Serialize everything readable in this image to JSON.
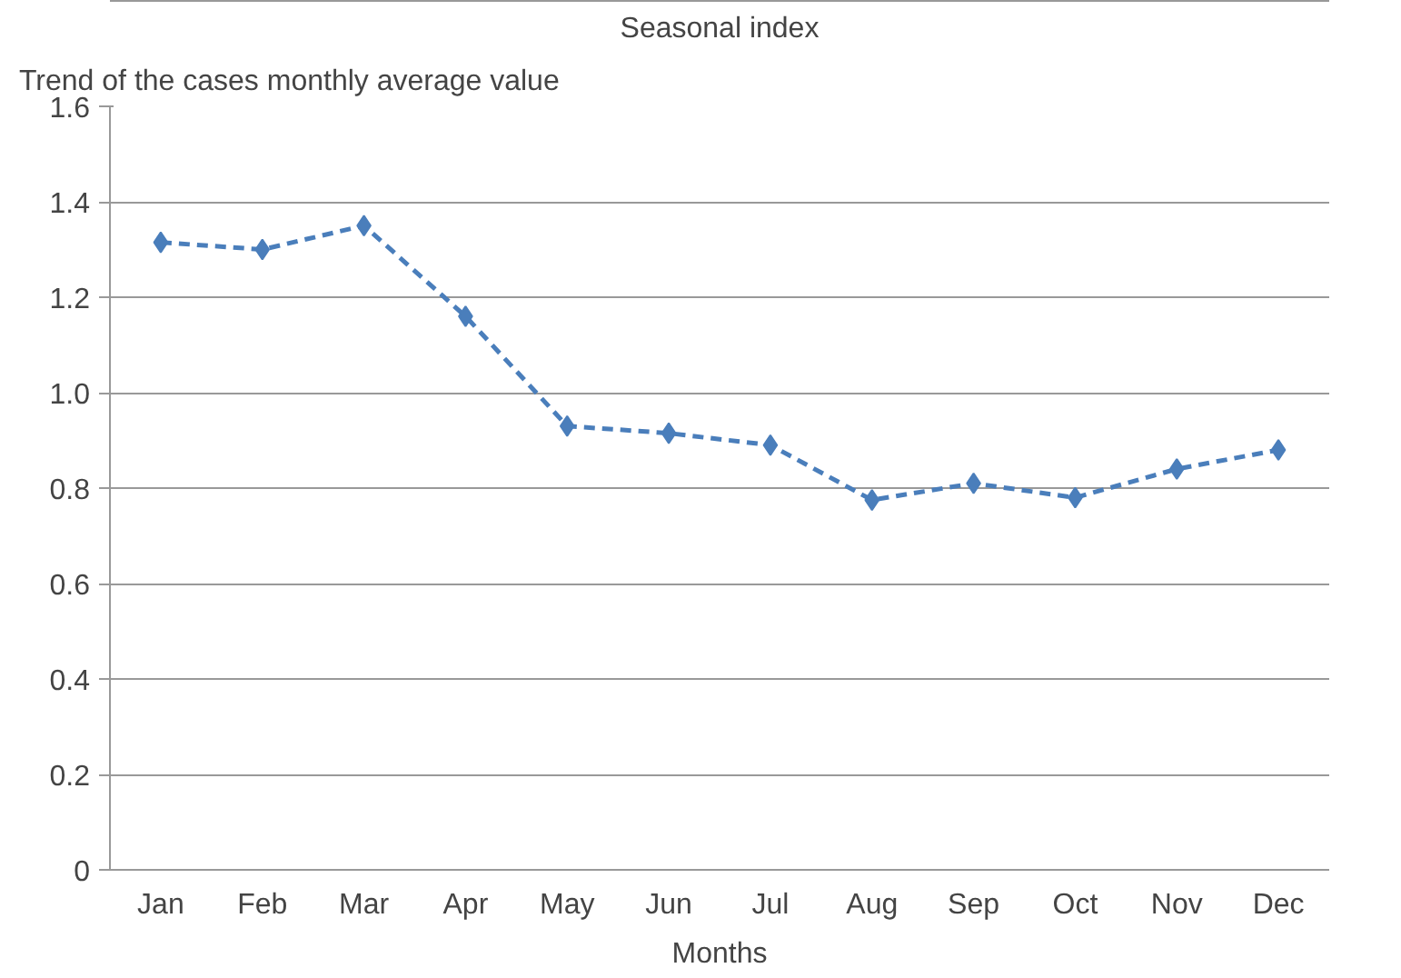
{
  "chart_data": {
    "type": "line",
    "title": "Seasonal index",
    "ylabel": "Trend of the cases monthly average value",
    "xlabel": "Months",
    "categories": [
      "Jan",
      "Feb",
      "Mar",
      "Apr",
      "May",
      "Jun",
      "Jul",
      "Aug",
      "Sep",
      "Oct",
      "Nov",
      "Dec"
    ],
    "series": [
      {
        "color": "#4a7ebb",
        "values": [
          1.315,
          1.3,
          1.35,
          1.16,
          0.93,
          0.915,
          0.89,
          0.775,
          0.81,
          0.78,
          0.84,
          0.88
        ]
      }
    ],
    "ylim": [
      0,
      1.6
    ],
    "yticks": [
      {
        "value": 0,
        "label": "0"
      },
      {
        "value": 0.2,
        "label": "0.2"
      },
      {
        "value": 0.4,
        "label": "0.4"
      },
      {
        "value": 0.6,
        "label": "0.6"
      },
      {
        "value": 0.8,
        "label": "0.8"
      },
      {
        "value": 1.0,
        "label": "1.0"
      },
      {
        "value": 1.2,
        "label": "1.2"
      },
      {
        "value": 1.4,
        "label": "1.4"
      },
      {
        "value": 1.6,
        "label": "1.6"
      }
    ],
    "grid": "y",
    "marker": "diamond",
    "line_style": "dashed"
  }
}
